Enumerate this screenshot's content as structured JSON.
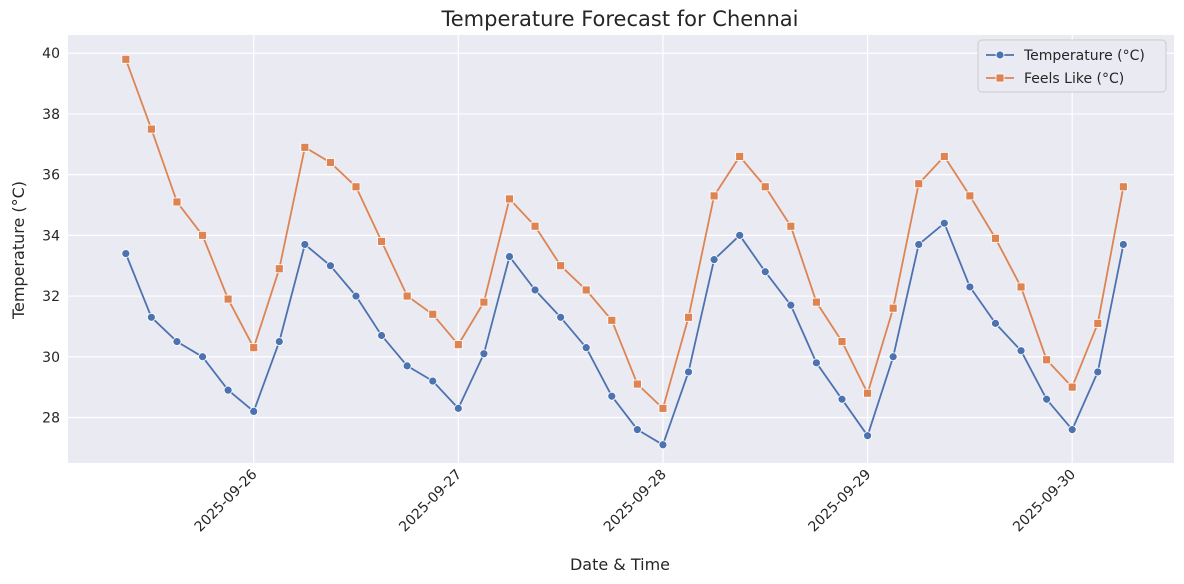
{
  "chart_data": {
    "type": "line",
    "title": "Temperature Forecast for Chennai",
    "xlabel": "Date & Time",
    "ylabel": "Temperature (°C)",
    "x_tick_labels": [
      "2025-09-26",
      "2025-09-27",
      "2025-09-28",
      "2025-09-29",
      "2025-09-30"
    ],
    "x_tick_values": [
      1,
      2,
      3,
      4,
      5
    ],
    "y_ticks": [
      28,
      30,
      32,
      34,
      36,
      38,
      40
    ],
    "xlim": [
      0.0925,
      5.4975
    ],
    "ylim": [
      26.5,
      40.6
    ],
    "grid": true,
    "legend_position": "top-right",
    "series": [
      {
        "name": "Temperature (°C)",
        "color": "#4c72b0",
        "marker": "circle",
        "x": [
          0.375,
          0.5,
          0.625,
          0.75,
          0.875,
          1.0,
          1.125,
          1.25,
          1.375,
          1.5,
          1.625,
          1.75,
          1.875,
          2.0,
          2.125,
          2.25,
          2.375,
          2.5,
          2.625,
          2.75,
          2.875,
          3.0,
          3.125,
          3.25,
          3.375,
          3.5,
          3.625,
          3.75,
          3.875,
          4.0,
          4.125,
          4.25,
          4.375,
          4.5,
          4.625,
          4.75,
          4.875,
          5.0,
          5.125,
          5.25
        ],
        "values": [
          33.4,
          31.3,
          30.5,
          30.0,
          28.9,
          28.2,
          30.5,
          33.7,
          33.0,
          32.0,
          30.7,
          29.7,
          29.2,
          28.3,
          30.1,
          33.3,
          32.2,
          31.3,
          30.3,
          28.7,
          27.6,
          27.1,
          29.5,
          33.2,
          34.0,
          32.8,
          31.7,
          29.8,
          28.6,
          27.4,
          30.0,
          33.7,
          34.4,
          32.3,
          31.1,
          30.2,
          28.6,
          27.6,
          29.5,
          33.7
        ]
      },
      {
        "name": "Feels Like (°C)",
        "color": "#dd8452",
        "marker": "square",
        "x": [
          0.375,
          0.5,
          0.625,
          0.75,
          0.875,
          1.0,
          1.125,
          1.25,
          1.375,
          1.5,
          1.625,
          1.75,
          1.875,
          2.0,
          2.125,
          2.25,
          2.375,
          2.5,
          2.625,
          2.75,
          2.875,
          3.0,
          3.125,
          3.25,
          3.375,
          3.5,
          3.625,
          3.75,
          3.875,
          4.0,
          4.125,
          4.25,
          4.375,
          4.5,
          4.625,
          4.75,
          4.875,
          5.0,
          5.125,
          5.25
        ],
        "values": [
          39.8,
          37.5,
          35.1,
          34.0,
          31.9,
          30.3,
          32.9,
          36.9,
          36.4,
          35.6,
          33.8,
          32.0,
          31.4,
          30.4,
          31.8,
          35.2,
          34.3,
          33.0,
          32.2,
          31.2,
          29.1,
          28.3,
          31.3,
          35.3,
          36.6,
          35.6,
          34.3,
          31.8,
          30.5,
          28.8,
          31.6,
          35.7,
          36.6,
          35.3,
          33.9,
          32.3,
          29.9,
          29.0,
          31.1,
          35.6
        ]
      }
    ]
  }
}
